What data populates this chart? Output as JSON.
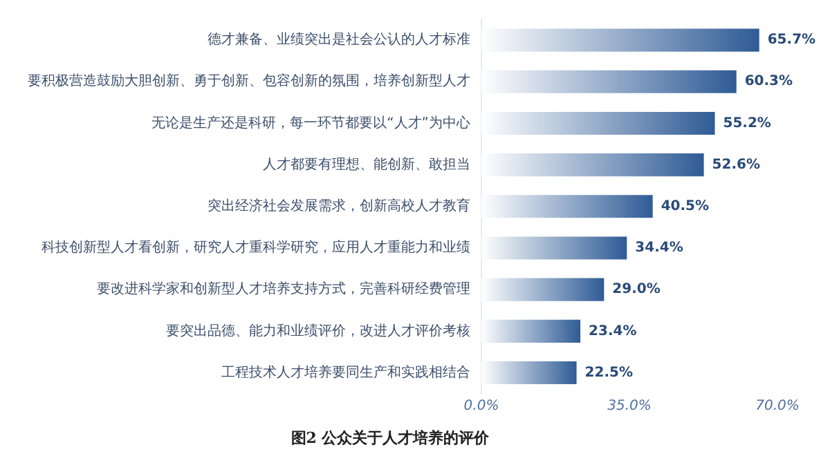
{
  "chart_data": {
    "type": "bar",
    "orientation": "horizontal",
    "title": "图2 公众关于人才培养的评价",
    "categories": [
      "德才兼备、业绩突出是社会公认的人才标准",
      "要积极营造鼓励大胆创新、勇于创新、包容创新的氛围，培养创新型人才",
      "无论是生产还是科研，每一环节都要以“人才”为中心",
      "人才都要有理想、能创新、敢担当",
      "突出经济社会发展需求，创新高校人才教育",
      "科技创新型人才看创新，研究人才重科学研究，应用人才重能力和业绩",
      "要改进科学家和创新型人才培养支持方式，完善科研经费管理",
      "要突出品德、能力和业绩评价，改进人才评价考核",
      "工程技术人才培养要同生产和实践相结合"
    ],
    "values": [
      65.7,
      60.3,
      55.2,
      52.6,
      40.5,
      34.4,
      29.0,
      23.4,
      22.5
    ],
    "value_labels": [
      "65.7%",
      "60.3%",
      "55.2%",
      "52.6%",
      "40.5%",
      "34.4%",
      "29.0%",
      "23.4%",
      "22.5%"
    ],
    "color": "#2f5b96",
    "xlim": [
      0,
      70
    ],
    "xticks": [
      {
        "value": 0,
        "label": "0.0%"
      },
      {
        "value": 35,
        "label": "35.0%"
      },
      {
        "value": 70,
        "label": "70.0%"
      }
    ],
    "grid": false,
    "legend": false
  }
}
